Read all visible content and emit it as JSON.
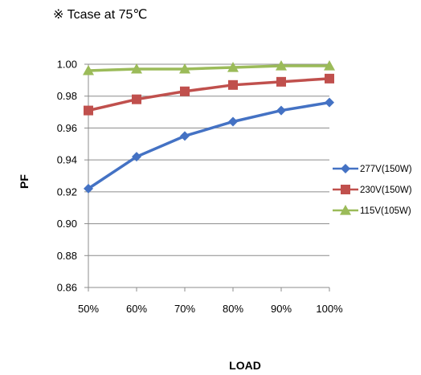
{
  "note": "※ Tcase at 75℃",
  "chart_data": {
    "type": "line",
    "categories": [
      "50%",
      "60%",
      "70%",
      "80%",
      "90%",
      "100%"
    ],
    "xlabel": "LOAD",
    "ylabel": "PF",
    "ylim": [
      0.86,
      1.0
    ],
    "yticks": [
      "1.00",
      "0.98",
      "0.96",
      "0.94",
      "0.92",
      "0.90",
      "0.88",
      "0.86"
    ],
    "grid": "horizontal",
    "legend_position": "right",
    "series": [
      {
        "name": "277V(150W)",
        "color": "#4472C4",
        "marker": "diamond",
        "values": [
          0.922,
          0.942,
          0.955,
          0.964,
          0.971,
          0.976
        ]
      },
      {
        "name": "230V(150W)",
        "color": "#C0504D",
        "marker": "square",
        "values": [
          0.971,
          0.978,
          0.983,
          0.987,
          0.989,
          0.991
        ]
      },
      {
        "name": "115V(105W)",
        "color": "#9BBB59",
        "marker": "triangle",
        "values": [
          0.996,
          0.997,
          0.997,
          0.998,
          0.999,
          0.999
        ]
      }
    ]
  }
}
